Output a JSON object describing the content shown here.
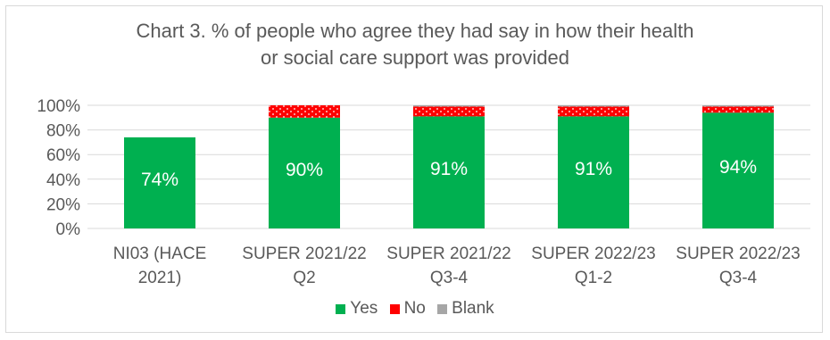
{
  "chart_data": {
    "type": "bar",
    "stacked": true,
    "title_lines": [
      "Chart 3. % of people who agree they had say in how their health",
      "or social care support was provided"
    ],
    "categories": [
      [
        "NI03 (HACE",
        "2021)"
      ],
      [
        "SUPER 2021/22",
        "Q2"
      ],
      [
        "SUPER 2021/22",
        "Q3-4"
      ],
      [
        "SUPER 2022/23",
        "Q1-2"
      ],
      [
        "SUPER 2022/23",
        "Q3-4"
      ]
    ],
    "series": [
      {
        "name": "Yes",
        "color": "#00b050",
        "values": [
          74,
          90,
          91,
          91,
          94
        ],
        "labels": [
          "74%",
          "90%",
          "91%",
          "91%",
          "94%"
        ]
      },
      {
        "name": "No",
        "color": "#ff0000",
        "values": [
          0,
          10,
          8,
          8,
          5
        ]
      },
      {
        "name": "Blank",
        "color": "#a6a6a6",
        "values": [
          0,
          0,
          1,
          1,
          1
        ]
      }
    ],
    "ylim": [
      0,
      100
    ],
    "yticks": [
      "0%",
      "20%",
      "40%",
      "60%",
      "80%",
      "100%"
    ],
    "grid": true,
    "legend_position": "bottom"
  }
}
